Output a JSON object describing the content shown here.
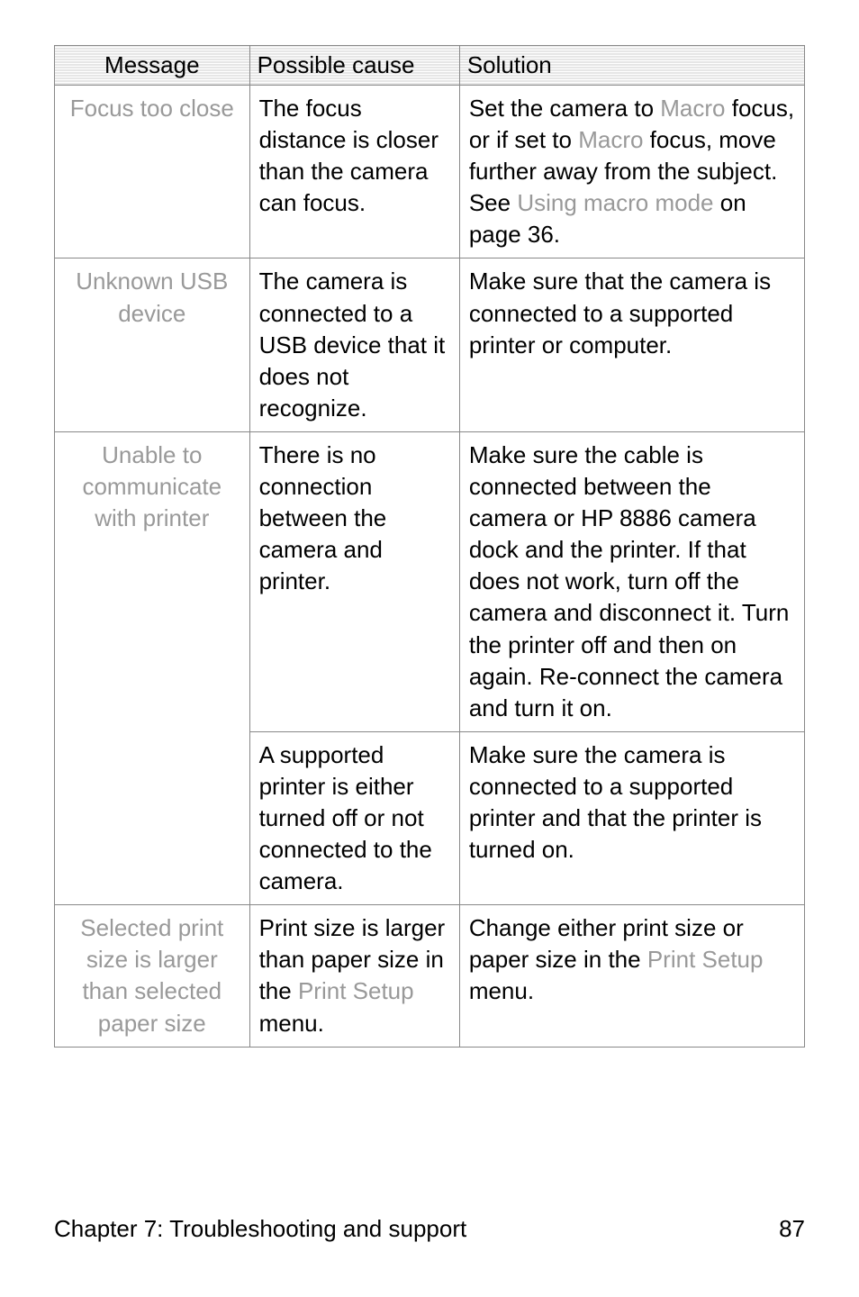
{
  "table": {
    "headers": {
      "message": "Message",
      "cause": "Possible cause",
      "solution": "Solution"
    },
    "rows": [
      {
        "message": "Focus too close",
        "cause": "The focus distance is closer than the camera can focus.",
        "solution_pre": "Set the camera to ",
        "solution_out1": "Macro",
        "solution_mid1": " focus, or if set to ",
        "solution_out2": "Macro",
        "solution_mid2": " focus, move further away from the subject. See ",
        "solution_out3": "Using macro mode",
        "solution_post": " on page 36."
      },
      {
        "message": "Unknown USB device",
        "cause": "The camera is connected to a USB device that it does not recognize.",
        "solution": "Make sure that the camera is connected to a supported printer or computer."
      },
      {
        "message": "Unable to communicate with printer",
        "cause": "There is no connection between the camera and printer.",
        "solution": "Make sure the cable is connected between the camera or HP 8886 camera dock and the printer. If that does not work, turn off the camera and disconnect it. Turn the printer off and then on again. Re-connect the camera and turn it on."
      },
      {
        "cause": "A supported printer is either turned off or not connected to the camera.",
        "solution": "Make sure the camera is connected to a supported printer and that the printer is turned on."
      },
      {
        "message": "Selected print size is larger than selected paper size",
        "cause_pre": "Print size is larger than paper size in the ",
        "cause_out": "Print Setup",
        "cause_post": " menu.",
        "solution_pre": "Change either print size or paper size in the ",
        "solution_out": "Print Setup",
        "solution_post": " menu."
      }
    ]
  },
  "footer": {
    "chapter": "Chapter 7: Troubleshooting and support",
    "page": "87"
  }
}
